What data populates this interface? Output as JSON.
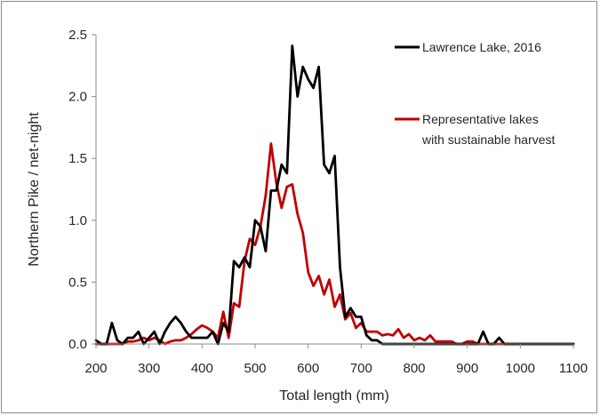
{
  "chart_data": {
    "type": "line",
    "title": "",
    "xlabel": "Total length (mm)",
    "ylabel": "Northern Pike / net-night",
    "xlim": [
      200,
      1100
    ],
    "ylim": [
      0,
      2.5
    ],
    "xticks": [
      200,
      300,
      400,
      500,
      600,
      700,
      800,
      900,
      1000,
      1100
    ],
    "yticks": [
      0.0,
      0.5,
      1.0,
      1.5,
      2.0,
      2.5
    ],
    "ytick_labels": [
      "0.0",
      "0.5",
      "1.0",
      "1.5",
      "2.0",
      "2.5"
    ],
    "grid": false,
    "legend_position": "top-right",
    "series": [
      {
        "name": "Lawrence Lake, 2016",
        "color": "#000000",
        "x": [
          200,
          210,
          220,
          230,
          240,
          250,
          260,
          270,
          280,
          290,
          300,
          310,
          320,
          330,
          340,
          350,
          360,
          370,
          380,
          390,
          400,
          410,
          420,
          430,
          440,
          450,
          460,
          470,
          480,
          490,
          500,
          510,
          520,
          530,
          540,
          550,
          560,
          570,
          580,
          590,
          600,
          610,
          620,
          630,
          640,
          650,
          660,
          670,
          680,
          690,
          700,
          710,
          720,
          730,
          740,
          750,
          760,
          770,
          780,
          790,
          800,
          810,
          820,
          830,
          840,
          850,
          860,
          870,
          880,
          890,
          900,
          910,
          920,
          930,
          940,
          950,
          960,
          970,
          980,
          990,
          1000,
          1010,
          1020,
          1030,
          1040,
          1050,
          1060,
          1070,
          1080,
          1090,
          1100
        ],
        "y": [
          0.03,
          0.0,
          0.0,
          0.17,
          0.03,
          0.0,
          0.05,
          0.05,
          0.1,
          0.0,
          0.05,
          0.1,
          0.0,
          0.1,
          0.17,
          0.22,
          0.17,
          0.1,
          0.05,
          0.05,
          0.05,
          0.05,
          0.1,
          0.0,
          0.17,
          0.1,
          0.67,
          0.62,
          0.7,
          0.62,
          1.0,
          0.95,
          0.75,
          1.24,
          1.24,
          1.45,
          1.38,
          2.41,
          2.0,
          2.24,
          2.14,
          2.07,
          2.24,
          1.45,
          1.38,
          1.52,
          0.62,
          0.22,
          0.29,
          0.22,
          0.22,
          0.07,
          0.03,
          0.03,
          0.0,
          0.0,
          0.0,
          0.0,
          0.0,
          0.0,
          0.0,
          0.0,
          0.0,
          0.0,
          0.0,
          0.0,
          0.0,
          0.0,
          0.0,
          0.0,
          0.0,
          0.0,
          0.0,
          0.1,
          0.0,
          0.0,
          0.05,
          0.0,
          0.0,
          0.0,
          0.0,
          0.0,
          0.0,
          0.0,
          0.0,
          0.0,
          0.0,
          0.0,
          0.0,
          0.0,
          0.0
        ]
      },
      {
        "name": "Representative lakes with sustainable harvest",
        "name_lines": [
          "Representative lakes",
          "with sustainable harvest"
        ],
        "color": "#c00000",
        "x": [
          200,
          210,
          220,
          230,
          240,
          250,
          260,
          270,
          280,
          290,
          300,
          310,
          320,
          330,
          340,
          350,
          360,
          370,
          380,
          390,
          400,
          410,
          420,
          430,
          440,
          450,
          460,
          470,
          480,
          490,
          500,
          510,
          520,
          530,
          540,
          550,
          560,
          570,
          580,
          590,
          600,
          610,
          620,
          630,
          640,
          650,
          660,
          670,
          680,
          690,
          700,
          710,
          720,
          730,
          740,
          750,
          760,
          770,
          780,
          790,
          800,
          810,
          820,
          830,
          840,
          850,
          860,
          870,
          880,
          890,
          900,
          910,
          920,
          930,
          940,
          950,
          960,
          970,
          980,
          990,
          1000,
          1010,
          1020,
          1030,
          1040,
          1050,
          1060,
          1070,
          1080,
          1090,
          1100
        ],
        "y": [
          0.0,
          0.0,
          0.0,
          0.0,
          0.0,
          0.0,
          0.02,
          0.02,
          0.03,
          0.05,
          0.03,
          0.05,
          0.03,
          0.0,
          0.02,
          0.03,
          0.03,
          0.05,
          0.08,
          0.12,
          0.15,
          0.13,
          0.1,
          0.05,
          0.26,
          0.05,
          0.33,
          0.3,
          0.67,
          0.85,
          0.8,
          0.95,
          1.2,
          1.62,
          1.3,
          1.1,
          1.27,
          1.29,
          1.05,
          0.9,
          0.58,
          0.47,
          0.55,
          0.4,
          0.52,
          0.3,
          0.4,
          0.2,
          0.25,
          0.13,
          0.17,
          0.1,
          0.1,
          0.1,
          0.07,
          0.08,
          0.07,
          0.12,
          0.05,
          0.08,
          0.03,
          0.05,
          0.03,
          0.07,
          0.02,
          0.02,
          0.02,
          0.02,
          0.0,
          0.0,
          0.02,
          0.02,
          0.0,
          0.0,
          0.0,
          0.0,
          0.0,
          0.0,
          0.0,
          0.0,
          0.0,
          0.0,
          0.0,
          0.0,
          0.0,
          0.0,
          0.0,
          0.0,
          0.0,
          0.0,
          0.0
        ]
      }
    ]
  }
}
